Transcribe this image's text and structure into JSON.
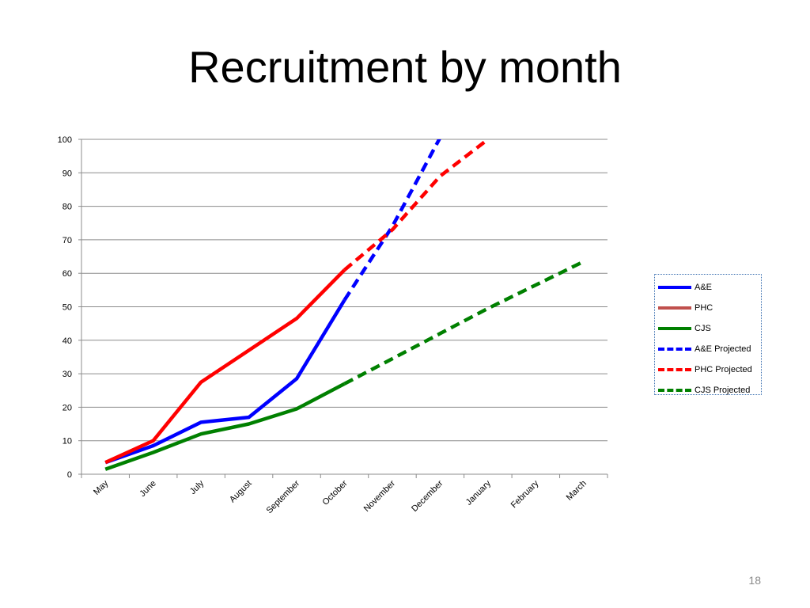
{
  "slide": {
    "title": "Recruitment by month",
    "page_number": "18"
  },
  "chart_data": {
    "type": "line",
    "categories": [
      "May",
      "June",
      "July",
      "August",
      "September",
      "October",
      "November",
      "December",
      "January",
      "February",
      "March"
    ],
    "ylim": [
      0,
      100
    ],
    "yticks": [
      0,
      10,
      20,
      30,
      40,
      50,
      60,
      70,
      80,
      90,
      100
    ],
    "grid": true,
    "legend_position": "right",
    "series": [
      {
        "name": "A&E",
        "color": "#0000ff",
        "style": "solid",
        "values": [
          3.5,
          8.5,
          15.5,
          17,
          28.5,
          52,
          null,
          null,
          null,
          null,
          null
        ]
      },
      {
        "name": "PHC",
        "color": "#ff0000",
        "legend_color": "#c0504d",
        "style": "solid",
        "values": [
          3.5,
          10,
          27.5,
          37,
          46.5,
          61,
          null,
          null,
          null,
          null,
          null
        ]
      },
      {
        "name": "CJS",
        "color": "#008000",
        "style": "solid",
        "values": [
          1.5,
          6.5,
          12,
          15,
          19.5,
          27,
          null,
          null,
          null,
          null,
          null
        ]
      },
      {
        "name": "A&E Projected",
        "color": "#0000ff",
        "style": "dashed",
        "values": [
          null,
          null,
          null,
          null,
          null,
          52,
          74,
          100.5,
          null,
          null,
          null
        ]
      },
      {
        "name": "PHC Projected",
        "color": "#ff0000",
        "style": "dashed",
        "values": [
          null,
          null,
          null,
          null,
          null,
          61,
          73,
          89,
          100,
          null,
          null
        ]
      },
      {
        "name": "CJS Projected",
        "color": "#008000",
        "style": "dashed",
        "values": [
          null,
          null,
          null,
          null,
          null,
          27,
          34.5,
          42,
          49.5,
          56.5,
          63.5
        ]
      }
    ]
  }
}
